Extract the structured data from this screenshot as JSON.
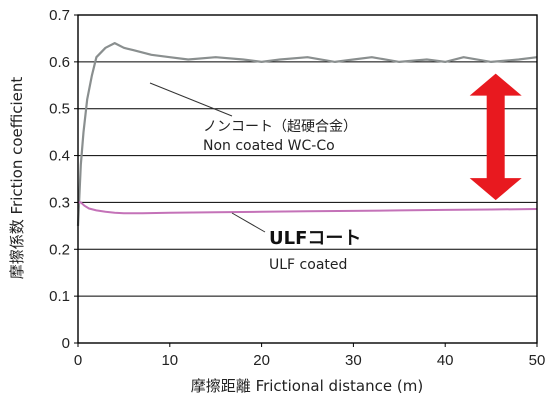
{
  "chart_data": {
    "type": "line",
    "title": "",
    "xlabel": "摩擦距離 Frictional distance (m)",
    "ylabel": "摩擦係数 Friction coefficient",
    "xlim": [
      0,
      50
    ],
    "ylim": [
      0,
      0.7
    ],
    "x_ticks": [
      0,
      10,
      20,
      30,
      40,
      50
    ],
    "y_ticks": [
      0,
      0.1,
      0.2,
      0.3,
      0.4,
      0.5,
      0.6,
      0.7
    ],
    "grid": "horizontal",
    "legend": "none",
    "series": [
      {
        "name": "Non coated WC-Co",
        "color": "#8a8f8f",
        "x": [
          0,
          0.3,
          0.6,
          1.0,
          1.5,
          2,
          3,
          4,
          5,
          6,
          8,
          10,
          12,
          15,
          18,
          20,
          22,
          25,
          28,
          30,
          32,
          35,
          38,
          40,
          42,
          45,
          48,
          50
        ],
        "y": [
          0.25,
          0.38,
          0.45,
          0.52,
          0.57,
          0.61,
          0.63,
          0.64,
          0.63,
          0.625,
          0.615,
          0.61,
          0.605,
          0.61,
          0.605,
          0.6,
          0.605,
          0.61,
          0.6,
          0.605,
          0.61,
          0.6,
          0.605,
          0.6,
          0.61,
          0.6,
          0.605,
          0.61
        ]
      },
      {
        "name": "ULF coated",
        "color": "#c472b8",
        "x": [
          0,
          0.3,
          0.7,
          1.2,
          2,
          3,
          4,
          5,
          7,
          10,
          15,
          20,
          25,
          30,
          35,
          40,
          45,
          50
        ],
        "y": [
          0.3,
          0.3,
          0.293,
          0.287,
          0.283,
          0.28,
          0.278,
          0.277,
          0.277,
          0.278,
          0.279,
          0.28,
          0.281,
          0.282,
          0.283,
          0.284,
          0.285,
          0.286
        ]
      }
    ],
    "annotations": {
      "non_coated_jp": "ノンコート（超硬合金）",
      "non_coated_en": "Non coated WC-Co",
      "ulf_jp": "ULFコート",
      "ulf_en": "ULF coated"
    },
    "arrow_color": "#e8191f"
  }
}
